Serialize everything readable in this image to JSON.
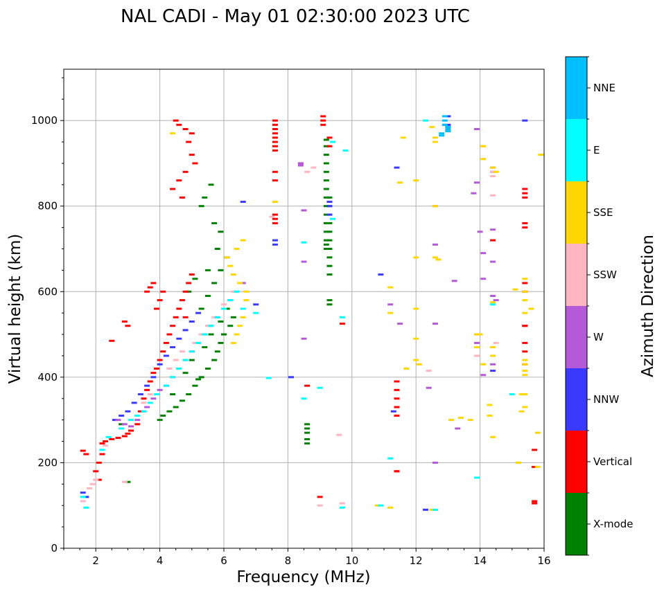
{
  "chart_data": {
    "type": "scatter",
    "title": "NAL CADI - May 01 02:30:00 2023 UTC",
    "xlabel": "Frequency (MHz)",
    "ylabel": "Virtual height (km)",
    "xlim": [
      1,
      16
    ],
    "ylim": [
      0,
      1120
    ],
    "xticks": [
      2,
      4,
      6,
      8,
      10,
      12,
      14,
      16
    ],
    "yticks": [
      0,
      200,
      400,
      600,
      800,
      1000
    ],
    "grid": true,
    "colorbar": {
      "label": "Azimuth Direction",
      "categories": [
        {
          "name": "X-mode",
          "color": "#008000"
        },
        {
          "name": "Vertical",
          "color": "#ff0000"
        },
        {
          "name": "NNW",
          "color": "#3a3aff"
        },
        {
          "name": "W",
          "color": "#b45ad8"
        },
        {
          "name": "SSW",
          "color": "#ffb6c1"
        },
        {
          "name": "SSE",
          "color": "#ffd700"
        },
        {
          "name": "E",
          "color": "#00ffff"
        },
        {
          "name": "NNE",
          "color": "#00bfff"
        }
      ]
    },
    "series": [
      {
        "name": "X-mode",
        "x": [
          2.8,
          3.0,
          4.0,
          4.1,
          4.3,
          4.5,
          4.7,
          4.9,
          5.1,
          5.2,
          5.3,
          5.5,
          5.7,
          5.8,
          5.9,
          6.0,
          6.2,
          6.3,
          4.4,
          4.8,
          5.0,
          5.4,
          5.6,
          5.9,
          6.1,
          5.3,
          5.5,
          5.7,
          5.9,
          6.1,
          4.9,
          5.1,
          5.5,
          5.8,
          5.9,
          5.7,
          5.3,
          5.4,
          5.6,
          8.6,
          8.6,
          8.6,
          8.6,
          8.6,
          9.2,
          9.2,
          9.2,
          9.2,
          9.2,
          9.2,
          9.2,
          9.2,
          9.2,
          9.2,
          9.2,
          9.2,
          9.2,
          9.2,
          9.2,
          9.3,
          9.3,
          9.3,
          9.3,
          9.3,
          9.3,
          9.3,
          9.3,
          9.3,
          9.3,
          9.3,
          9.3
        ],
        "y": [
          290,
          155,
          300,
          310,
          320,
          330,
          345,
          360,
          380,
          395,
          400,
          420,
          440,
          460,
          480,
          500,
          520,
          540,
          360,
          410,
          440,
          470,
          500,
          530,
          560,
          560,
          590,
          620,
          650,
          680,
          600,
          630,
          650,
          700,
          740,
          760,
          800,
          820,
          850,
          245,
          255,
          270,
          280,
          290,
          955,
          940,
          920,
          900,
          880,
          860,
          840,
          820,
          800,
          780,
          760,
          740,
          720,
          710,
          700,
          640,
          660,
          680,
          700,
          720,
          740,
          760,
          780,
          800,
          820,
          570,
          580
        ]
      },
      {
        "name": "Vertical",
        "x": [
          1.6,
          1.7,
          2.1,
          2.2,
          2.3,
          2.5,
          2.7,
          2.9,
          3.0,
          3.1,
          3.3,
          3.4,
          3.5,
          3.6,
          3.7,
          3.8,
          3.9,
          4.0,
          4.1,
          4.2,
          4.3,
          4.4,
          4.5,
          4.6,
          4.7,
          4.8,
          4.9,
          5.0,
          2.0,
          2.1,
          2.2,
          3.6,
          3.7,
          3.8,
          3.9,
          4.0,
          4.1,
          4.5,
          4.6,
          4.8,
          5.0,
          4.9,
          5.0,
          5.1,
          4.8,
          4.6,
          4.4,
          4.7,
          2.9,
          3.0,
          4.8,
          2.5,
          7.6,
          7.6,
          7.6,
          7.6,
          7.6,
          7.6,
          7.6,
          7.6,
          7.6,
          7.6,
          7.6,
          7.6,
          7.6,
          9.3,
          9.3,
          9.1,
          9.1,
          9.1,
          8.4,
          11.4,
          11.4,
          11.4,
          11.4,
          11.4,
          11.4,
          14.4,
          15.4,
          15.4,
          15.4,
          15.4,
          15.4,
          15.4,
          15.4,
          15.4,
          15.4,
          15.4,
          15.4,
          15.7,
          15.7,
          15.7,
          15.7,
          15.4,
          8.6,
          9.7,
          9.0,
          11.4
        ],
        "y": [
          228,
          220,
          160,
          245,
          250,
          255,
          258,
          262,
          268,
          275,
          290,
          320,
          350,
          370,
          390,
          410,
          420,
          440,
          460,
          480,
          500,
          520,
          540,
          560,
          580,
          600,
          620,
          640,
          180,
          200,
          220,
          600,
          610,
          620,
          560,
          580,
          600,
          1000,
          990,
          980,
          970,
          950,
          920,
          900,
          880,
          860,
          840,
          820,
          530,
          520,
          540,
          485,
          1000,
          990,
          980,
          970,
          960,
          950,
          940,
          930,
          880,
          860,
          780,
          770,
          760,
          960,
          940,
          1010,
          1000,
          990,
          900,
          390,
          370,
          350,
          330,
          310,
          180,
          720,
          840,
          830,
          820,
          760,
          750,
          620,
          600,
          520,
          480,
          460,
          430,
          190,
          105,
          110,
          230,
          520,
          380,
          525,
          120,
          180
        ]
      },
      {
        "name": "NNW",
        "x": [
          1.6,
          1.7,
          2.6,
          2.8,
          3.0,
          3.2,
          3.4,
          3.6,
          3.8,
          4.0,
          4.2,
          4.4,
          4.6,
          4.8,
          5.0,
          5.2,
          6.6,
          7.6,
          7.6,
          7.0,
          8.1,
          10.9,
          11.4,
          11.3,
          12.3,
          14.4,
          14.4,
          14.4,
          9.3,
          9.3,
          9.3,
          13.0,
          13.0,
          15.4
        ],
        "y": [
          130,
          120,
          300,
          310,
          320,
          340,
          360,
          380,
          400,
          430,
          450,
          470,
          490,
          510,
          530,
          550,
          810,
          720,
          710,
          570,
          400,
          640,
          890,
          320,
          90,
          880,
          890,
          415,
          810,
          800,
          780,
          1010,
          990,
          1000
        ]
      },
      {
        "name": "W",
        "x": [
          2.7,
          2.9,
          3.1,
          3.3,
          3.5,
          3.6,
          3.8,
          4.0,
          4.2,
          4.4,
          4.6,
          4.8,
          5.0,
          5.2,
          5.4,
          5.6,
          5.8,
          6.0,
          6.2,
          6.4,
          6.6,
          8.4,
          8.5,
          8.5,
          8.5,
          8.4,
          11.2,
          11.5,
          12.4,
          12.6,
          12.6,
          12.6,
          13.2,
          13.3,
          13.9,
          14.0,
          14.1,
          13.8,
          13.9,
          14.4,
          14.4,
          14.4,
          14.5,
          14.1,
          14.1,
          13.9,
          13.0,
          13.0,
          12.9,
          12.6,
          14.4
        ],
        "y": [
          300,
          290,
          285,
          300,
          320,
          330,
          350,
          370,
          380,
          400,
          420,
          440,
          460,
          480,
          500,
          520,
          540,
          560,
          580,
          600,
          620,
          900,
          790,
          670,
          490,
          895,
          570,
          525,
          375,
          200,
          710,
          800,
          625,
          280,
          980,
          740,
          690,
          830,
          480,
          745,
          670,
          430,
          580,
          405,
          630,
          855,
          975,
          985,
          990,
          525,
          590
        ]
      },
      {
        "name": "SSW",
        "x": [
          1.6,
          1.8,
          1.9,
          2.0,
          2.3,
          2.9,
          3.1,
          3.3,
          3.5,
          3.7,
          4.3,
          4.5,
          4.7,
          5.1,
          5.3,
          5.5,
          5.7,
          6.0,
          6.3,
          8.6,
          8.8,
          9.6,
          12.4,
          14.4,
          14.4,
          14.4,
          13.9,
          13.9,
          14.5,
          7.5,
          9.0,
          9.7
        ],
        "y": [
          110,
          140,
          150,
          160,
          240,
          155,
          300,
          310,
          340,
          360,
          420,
          440,
          460,
          480,
          500,
          520,
          540,
          570,
          600,
          880,
          890,
          265,
          415,
          880,
          870,
          825,
          450,
          500,
          480,
          775,
          100,
          105
        ]
      },
      {
        "name": "SSE",
        "x": [
          4.4,
          6.3,
          6.4,
          6.5,
          6.6,
          6.6,
          6.7,
          6.7,
          6.5,
          6.3,
          6.2,
          6.1,
          6.4,
          6.6,
          7.6,
          12.0,
          12.0,
          12.0,
          12.0,
          12.0,
          11.2,
          11.2,
          11.6,
          11.7,
          12.6,
          12.6,
          12.6,
          12.6,
          12.5,
          13.1,
          13.7,
          13.9,
          14.1,
          14.4,
          14.5,
          14.4,
          14.3,
          14.3,
          14.4,
          14.4,
          15.2,
          15.3,
          15.4,
          15.4,
          15.4,
          15.4,
          15.4,
          15.4,
          15.4,
          15.4,
          15.4,
          15.4,
          15.6,
          15.8,
          15.8,
          15.9,
          14.1,
          14.1,
          14.0,
          13.9,
          10.8,
          11.2,
          11.5,
          12.1,
          12.5,
          12.7,
          13.4,
          14.1,
          14.4,
          15.1,
          15.3
        ],
        "y": [
          970,
          480,
          500,
          520,
          540,
          560,
          580,
          600,
          620,
          640,
          660,
          680,
          700,
          720,
          810,
          860,
          680,
          560,
          490,
          440,
          610,
          550,
          960,
          420,
          960,
          950,
          800,
          680,
          985,
          300,
          300,
          500,
          430,
          890,
          880,
          470,
          310,
          335,
          260,
          450,
          200,
          360,
          550,
          630,
          600,
          580,
          440,
          430,
          415,
          405,
          360,
          330,
          560,
          270,
          190,
          920,
          940,
          910,
          500,
          470,
          100,
          95,
          855,
          430,
          90,
          675,
          305,
          940,
          575,
          605,
          320
        ]
      },
      {
        "name": "E",
        "x": [
          1.6,
          1.7,
          2.2,
          2.4,
          2.8,
          3.1,
          3.3,
          3.5,
          3.7,
          3.9,
          4.2,
          4.4,
          4.6,
          4.8,
          5.0,
          5.2,
          5.4,
          5.6,
          5.8,
          6.0,
          6.2,
          6.4,
          6.6,
          7.0,
          8.5,
          9.0,
          9.4,
          9.4,
          9.7,
          9.8,
          10.9,
          11.2,
          12.3,
          12.6,
          13.9,
          14.4,
          15.0,
          9.7,
          8.5,
          7.4
        ],
        "y": [
          120,
          95,
          230,
          260,
          280,
          300,
          310,
          320,
          340,
          360,
          380,
          400,
          420,
          440,
          460,
          480,
          500,
          520,
          540,
          560,
          580,
          600,
          560,
          550,
          715,
          375,
          950,
          770,
          540,
          930,
          100,
          210,
          1000,
          90,
          165,
          570,
          360,
          95,
          350,
          398
        ]
      },
      {
        "name": "NNE",
        "x": [
          12.9,
          12.9,
          12.9,
          13.0,
          13.0,
          13.0,
          12.8,
          12.8
        ],
        "y": [
          1010,
          1000,
          990,
          985,
          980,
          975,
          970,
          965
        ]
      }
    ]
  }
}
